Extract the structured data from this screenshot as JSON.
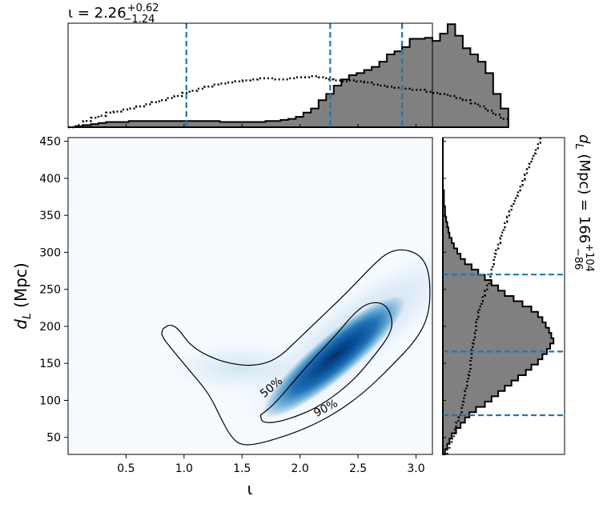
{
  "chart_data": [
    {
      "panel": "top-marginal",
      "type": "histogram",
      "title": "ι = 2.26",
      "title_parts": {
        "symbol": "ι",
        "median": "2.26",
        "plus": "+0.62",
        "minus": "−1.24"
      },
      "xlim": [
        0.0,
        3.14159
      ],
      "bin_edges_start": 0.0,
      "bin_width": 0.06545,
      "posterior_counts": [
        0,
        1,
        2,
        3,
        4,
        5,
        5,
        5,
        6,
        6,
        6,
        6,
        6,
        6,
        6,
        6,
        6,
        6,
        6,
        6,
        5,
        5,
        5,
        5,
        5,
        5,
        6,
        6,
        7,
        8,
        10,
        14,
        18,
        26,
        32,
        40,
        46,
        50,
        52,
        55,
        58,
        63,
        70,
        73,
        77,
        85,
        85,
        86,
        83,
        90,
        99,
        88,
        76,
        70,
        63,
        52,
        32,
        18
      ],
      "prior_counts": [
        0,
        2,
        6,
        9,
        11,
        14,
        15,
        17,
        18,
        20,
        22,
        24,
        26,
        28,
        30,
        33,
        35,
        37,
        39,
        41,
        42,
        43,
        44,
        45,
        46,
        47,
        47,
        46,
        46,
        47,
        48,
        48,
        49,
        48,
        46,
        45,
        44,
        45,
        44,
        43,
        41,
        40,
        39,
        38,
        37,
        36,
        36,
        34,
        33,
        32,
        30,
        28,
        26,
        23,
        20,
        16,
        12,
        8
      ],
      "quantile_lines": [
        1.02,
        2.26,
        2.88
      ],
      "quantile_color": "#1f77b4",
      "posterior_fill": "#808080",
      "ymax": 100
    },
    {
      "panel": "joint",
      "type": "heatmap",
      "xlabel": "ι",
      "ylabel": "d_L (Mpc)",
      "ylabel_parts": {
        "symbol": "d",
        "sub": "L",
        "rest": " (Mpc)"
      },
      "xlim": [
        0.0,
        3.14159
      ],
      "ylim": [
        27,
        455
      ],
      "xticks": [
        0.5,
        1.0,
        1.5,
        2.0,
        2.5,
        3.0
      ],
      "xtick_labels": [
        "0.5",
        "1.0",
        "1.5",
        "2.0",
        "2.5",
        "3.0"
      ],
      "yticks": [
        50,
        100,
        150,
        200,
        250,
        300,
        350,
        400,
        450
      ],
      "ytick_labels": [
        "50",
        "100",
        "150",
        "200",
        "250",
        "300",
        "350",
        "400",
        "450"
      ],
      "colormap": [
        "#f7fbff",
        "#deebf7",
        "#c6dbef",
        "#9ecae1",
        "#6baed6",
        "#4292c6",
        "#2171b5",
        "#08519c",
        "#08306b"
      ],
      "density_peak": {
        "iota": 2.3,
        "dL": 165
      },
      "contours": [
        {
          "level": "90%",
          "path": [
            [
              0.82,
              197
            ],
            [
              0.88,
              203
            ],
            [
              0.95,
              197
            ],
            [
              1.05,
              175
            ],
            [
              1.2,
              160
            ],
            [
              1.38,
              150
            ],
            [
              1.6,
              146
            ],
            [
              1.8,
              155
            ],
            [
              2.0,
              185
            ],
            [
              2.2,
              215
            ],
            [
              2.4,
              245
            ],
            [
              2.6,
              278
            ],
            [
              2.75,
              300
            ],
            [
              2.9,
              305
            ],
            [
              3.05,
              295
            ],
            [
              3.12,
              270
            ],
            [
              3.12,
              220
            ],
            [
              3.02,
              185
            ],
            [
              2.8,
              148
            ],
            [
              2.55,
              110
            ],
            [
              2.3,
              82
            ],
            [
              2.05,
              62
            ],
            [
              1.8,
              48
            ],
            [
              1.6,
              40
            ],
            [
              1.48,
              40
            ],
            [
              1.4,
              52
            ],
            [
              1.32,
              75
            ],
            [
              1.22,
              108
            ],
            [
              1.05,
              140
            ],
            [
              0.9,
              168
            ],
            [
              0.8,
              188
            ],
            [
              0.82,
              197
            ]
          ],
          "label_at": [
            2.22,
            90
          ],
          "label_angle": -28
        },
        {
          "level": "50%",
          "path": [
            [
              1.66,
              80
            ],
            [
              1.78,
              95
            ],
            [
              1.98,
              132
            ],
            [
              2.15,
              162
            ],
            [
              2.32,
              190
            ],
            [
              2.45,
              215
            ],
            [
              2.58,
              232
            ],
            [
              2.73,
              232
            ],
            [
              2.8,
              210
            ],
            [
              2.78,
              190
            ],
            [
              2.65,
              162
            ],
            [
              2.45,
              125
            ],
            [
              2.2,
              95
            ],
            [
              2.0,
              80
            ],
            [
              1.8,
              70
            ],
            [
              1.67,
              70
            ],
            [
              1.66,
              80
            ]
          ],
          "label_at": [
            1.75,
            118
          ],
          "label_angle": -40
        }
      ]
    },
    {
      "panel": "right-marginal",
      "type": "histogram",
      "orientation": "horizontal",
      "title": "d_L (Mpc) = 166",
      "title_parts": {
        "symbol": "d",
        "sub": "L",
        "rest": " (Mpc) = ",
        "median": "166",
        "plus": "+104",
        "minus": "−86"
      },
      "ylim": [
        27,
        455
      ],
      "bin_edges_start": 27,
      "bin_width": 7.135,
      "posterior_counts": [
        2,
        4,
        6,
        8,
        12,
        16,
        20,
        24,
        30,
        38,
        44,
        50,
        56,
        62,
        68,
        75,
        80,
        86,
        90,
        94,
        97,
        100,
        98,
        96,
        93,
        90,
        86,
        80,
        72,
        64,
        56,
        50,
        44,
        38,
        32,
        26,
        20,
        16,
        13,
        10,
        8,
        6,
        5,
        4,
        3,
        2,
        2,
        1,
        1,
        1,
        0,
        0,
        0,
        0,
        0,
        0,
        0,
        0,
        0,
        0
      ],
      "prior_counts": [
        4,
        6,
        8,
        10,
        11,
        12,
        14,
        16,
        17,
        18,
        19,
        20,
        21,
        22,
        23,
        24,
        25,
        25,
        26,
        26,
        27,
        28,
        29,
        30,
        30,
        31,
        32,
        33,
        35,
        36,
        38,
        40,
        42,
        43,
        44,
        45,
        46,
        47,
        48,
        50,
        52,
        53,
        55,
        56,
        58,
        60,
        62,
        64,
        66,
        68,
        70,
        72,
        74,
        76,
        78,
        80,
        82,
        84,
        86,
        88
      ],
      "quantile_lines": [
        80,
        166,
        270
      ],
      "quantile_color": "#1f77b4",
      "posterior_fill": "#808080",
      "xmax": 110
    }
  ]
}
